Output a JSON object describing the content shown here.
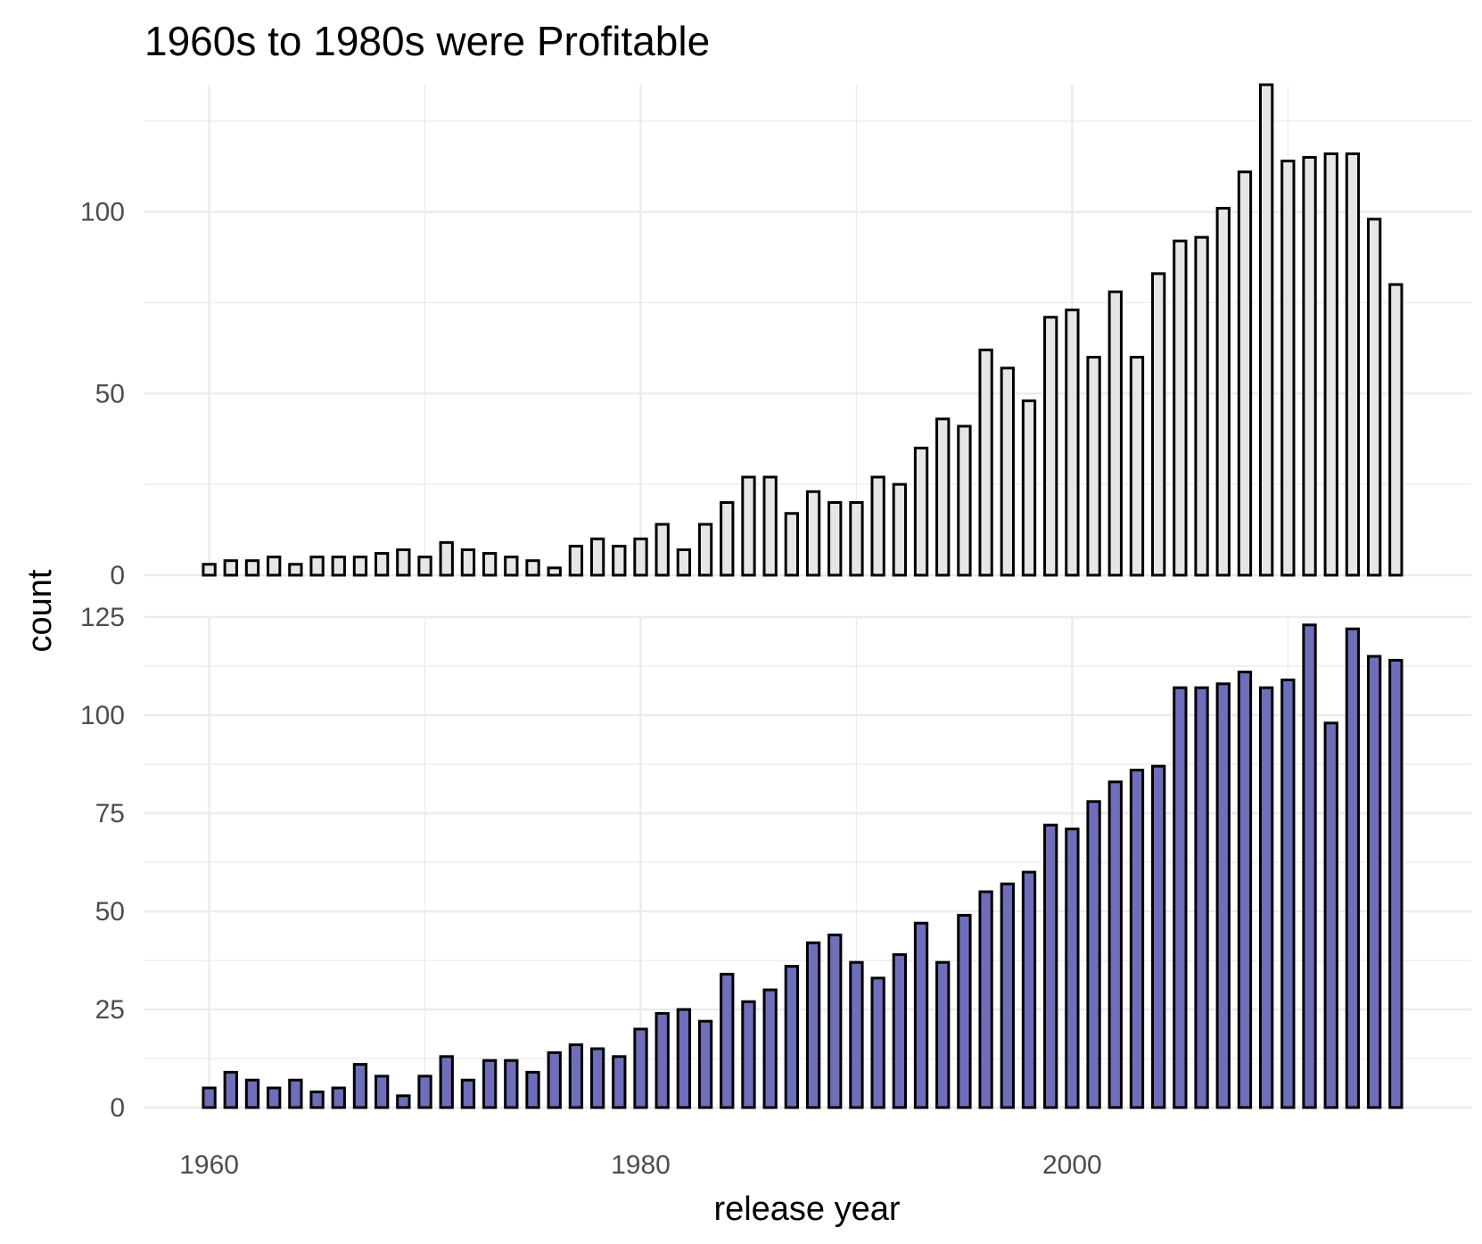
{
  "chart_data": {
    "type": "bar",
    "title": "1960s to 1980s were Profitable",
    "xlabel": "release year",
    "ylabel": "count",
    "grid": true,
    "legend": "none",
    "x_ticks": [
      "1960",
      "1980",
      "2000"
    ],
    "xlim": [
      1957,
      2018.5
    ],
    "years": [
      1960,
      1961,
      1962,
      1963,
      1964,
      1965,
      1966,
      1967,
      1968,
      1969,
      1970,
      1971,
      1972,
      1973,
      1974,
      1975,
      1976,
      1977,
      1978,
      1979,
      1980,
      1981,
      1982,
      1983,
      1984,
      1985,
      1986,
      1987,
      1988,
      1989,
      1990,
      1991,
      1992,
      1993,
      1994,
      1995,
      1996,
      1997,
      1998,
      1999,
      2000,
      2001,
      2002,
      2003,
      2004,
      2005,
      2006,
      2007,
      2008,
      2009,
      2010,
      2011,
      2012,
      2013,
      2014,
      2015
    ],
    "panels": [
      {
        "fill": "#e6e6e6",
        "outline": "#000000",
        "ylim": [
          0,
          135
        ],
        "y_ticks": [
          0,
          50,
          100
        ],
        "y_tick_labels": [
          "0",
          "50",
          "100"
        ],
        "values": [
          3,
          4,
          4,
          5,
          3,
          5,
          5,
          5,
          6,
          7,
          5,
          9,
          7,
          6,
          5,
          4,
          2,
          8,
          10,
          8,
          10,
          14,
          7,
          14,
          20,
          27,
          27,
          17,
          23,
          20,
          20,
          27,
          25,
          35,
          43,
          41,
          62,
          57,
          48,
          71,
          73,
          60,
          78,
          60,
          83,
          92,
          93,
          101,
          111,
          135,
          114,
          115,
          116,
          116,
          98,
          80
        ]
      },
      {
        "fill": "#6e6eba",
        "outline": "#000000",
        "ylim": [
          0,
          125
        ],
        "y_ticks": [
          0,
          25,
          50,
          75,
          100,
          125
        ],
        "y_tick_labels": [
          "0",
          "25",
          "50",
          "75",
          "100",
          "125"
        ],
        "values": [
          5,
          9,
          7,
          5,
          7,
          4,
          5,
          11,
          8,
          3,
          8,
          13,
          7,
          12,
          12,
          9,
          14,
          16,
          15,
          13,
          20,
          24,
          25,
          22,
          34,
          27,
          30,
          36,
          42,
          44,
          37,
          33,
          39,
          47,
          37,
          49,
          55,
          57,
          60,
          72,
          71,
          78,
          83,
          86,
          87,
          107,
          107,
          108,
          111,
          107,
          109,
          123,
          98,
          122,
          115,
          114
        ]
      }
    ]
  }
}
